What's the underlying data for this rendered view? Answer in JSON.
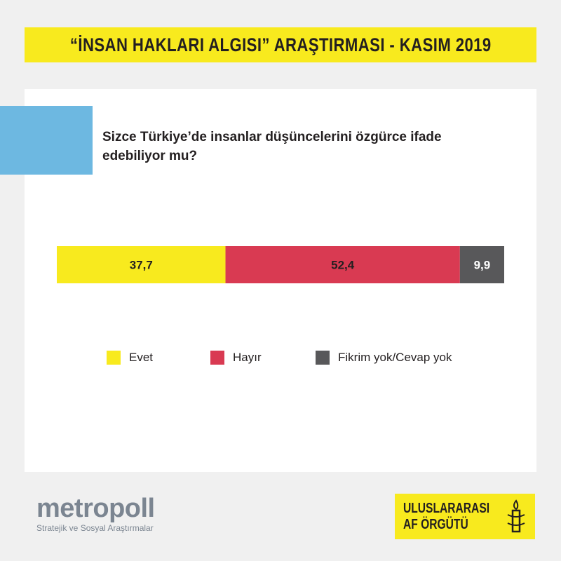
{
  "header": {
    "title": "“İNSAN HAKLARI ALGISI” ARAŞTIRMASI - KASIM 2019"
  },
  "chart_data": {
    "type": "bar",
    "orientation": "horizontal-stacked",
    "title": "Sizce Türkiye’de insanlar düşüncelerini özgürce ifade edebiliyor mu?",
    "series": [
      {
        "name": "Evet",
        "value": 37.7,
        "label": "37,7",
        "color": "#f8ea1e"
      },
      {
        "name": "Hayır",
        "value": 52.4,
        "label": "52,4",
        "color": "#d93a52"
      },
      {
        "name": "Fikrim yok/Cevap yok",
        "value": 9.9,
        "label": "9,9",
        "color": "#58585a"
      }
    ],
    "legend_position": "bottom"
  },
  "footer": {
    "metropoll": {
      "logo": "metropoll",
      "tagline": "Stratejik ve Sosyal Araştırmalar"
    },
    "amnesty": {
      "line1": "ULUSLARARASI",
      "line2": "AF ÖRGÜTÜ"
    }
  }
}
